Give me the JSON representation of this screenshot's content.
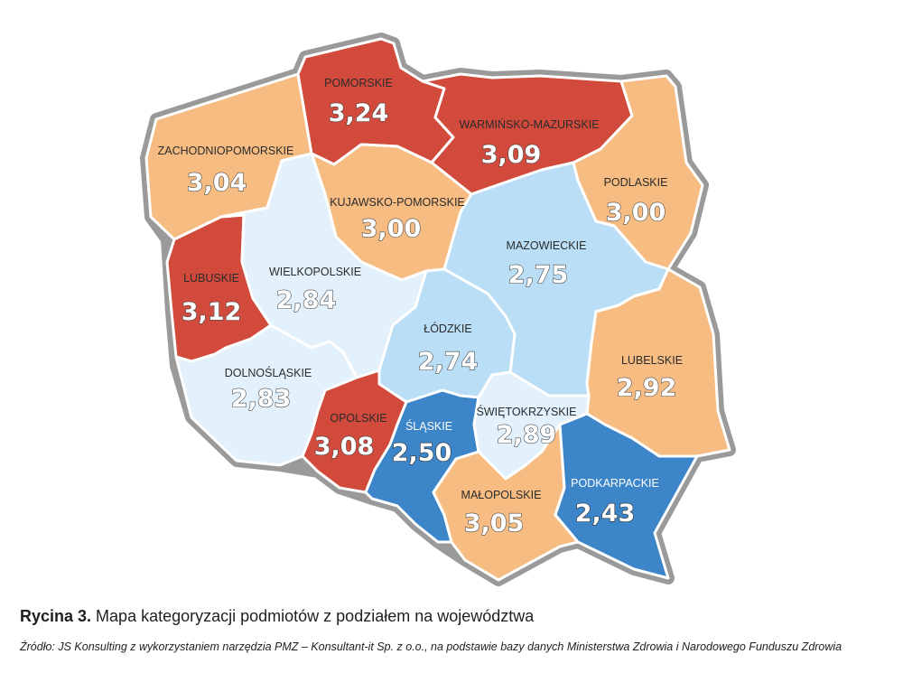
{
  "colors": {
    "outline": "#9a9a9a",
    "high_red": "#d24a3c",
    "orange": "#f6bc82",
    "light_blue": "#b9def6",
    "pale_blue": "#e2f1fc",
    "blue": "#3b85c8"
  },
  "regions": {
    "pomorskie": {
      "name": "POMORSKIE",
      "value": "3,24"
    },
    "warminsko": {
      "name": "WARMIŃSKO-MAZURSKIE",
      "value": "3,09"
    },
    "zachodnio": {
      "name": "ZACHODNIOPOMORSKIE",
      "value": "3,04"
    },
    "podlaskie": {
      "name": "PODLASKIE",
      "value": "3,00"
    },
    "kujawsko": {
      "name": "KUJAWSKO-POMORSKIE",
      "value": "3,00"
    },
    "mazowieckie": {
      "name": "MAZOWIECKIE",
      "value": "2,75"
    },
    "lubuskie": {
      "name": "LUBUSKIE",
      "value": "3,12"
    },
    "wielkopolskie": {
      "name": "WIELKOPOLSKIE",
      "value": "2,84"
    },
    "lodzkie": {
      "name": "ŁÓDZKIE",
      "value": "2,74"
    },
    "lubelskie": {
      "name": "LUBELSKIE",
      "value": "2,92"
    },
    "dolnoslaskie": {
      "name": "DOLNOŚLĄSKIE",
      "value": "2,83"
    },
    "opolskie": {
      "name": "OPOLSKIE",
      "value": "3,08"
    },
    "slaskie": {
      "name": "ŚLĄSKIE",
      "value": "2,50"
    },
    "swietokrzyskie": {
      "name": "ŚWIĘTOKRZYSKIE",
      "value": "2,89"
    },
    "malopolskie": {
      "name": "MAŁOPOLSKIE",
      "value": "3,05"
    },
    "podkarpackie": {
      "name": "PODKARPACKIE",
      "value": "2,43"
    }
  },
  "caption": {
    "label": "Rycina 3.",
    "text": " Mapa kategoryzacji podmiotów z podziałem na województwa"
  },
  "source": "Źródło: JS Konsulting z wykorzystaniem narzędzia PMZ – Konsultant-it Sp. z o.o., na podstawie bazy danych Ministerstwa Zdrowia i Narodowego Funduszu Zdrowia"
}
